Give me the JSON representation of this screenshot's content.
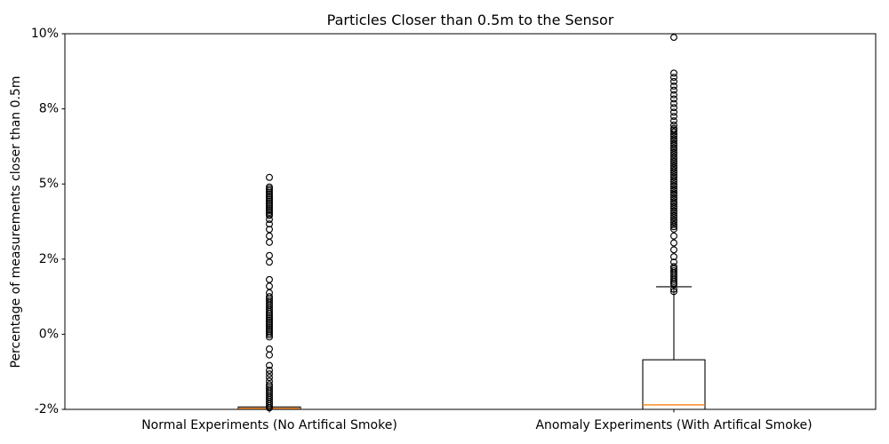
{
  "figure": {
    "background": "#ffffff"
  },
  "chart_data": {
    "type": "boxplot",
    "title": "Particles Closer than 0.5m to the Sensor",
    "xlabel": "",
    "ylabel": "Percentage of measurements closer than 0.5m",
    "ylim": [
      -2.5,
      10
    ],
    "grid": false,
    "legend": "none",
    "yticks": [
      {
        "value": 10,
        "label": "10%"
      },
      {
        "value": 7.5,
        "label": "8%"
      },
      {
        "value": 5,
        "label": "5%"
      },
      {
        "value": 2.5,
        "label": "2%"
      },
      {
        "value": 0,
        "label": "0%"
      },
      {
        "value": -2.5,
        "label": "-2%"
      }
    ],
    "categories": [
      "Normal Experiments (No Artifical Smoke)",
      "Anomaly Experiments (With Artifical Smoke)"
    ],
    "colors": {
      "box": "#000000",
      "median": "#ff7f0e",
      "whisker": "#000000",
      "outlier": "#000000",
      "axis": "#000000",
      "text": "#000000",
      "background": "#ffffff"
    },
    "series": [
      {
        "name": "Normal Experiments (No Artifical Smoke)",
        "q1": -2.9,
        "median": -2.47,
        "q3": -2.42,
        "whisker_high": null,
        "whisker_low": null,
        "outliers": [
          5.22,
          4.9,
          4.84,
          4.78,
          4.72,
          4.66,
          4.6,
          4.54,
          4.48,
          4.42,
          4.36,
          4.3,
          4.24,
          4.18,
          4.12,
          4.06,
          4.0,
          3.95,
          3.82,
          3.67,
          3.49,
          3.27,
          3.06,
          2.62,
          2.4,
          1.82,
          1.6,
          1.38,
          1.25,
          1.18,
          1.11,
          1.04,
          0.97,
          0.9,
          0.83,
          0.76,
          0.7,
          0.64,
          0.58,
          0.52,
          0.46,
          0.4,
          0.34,
          0.28,
          0.22,
          0.16,
          0.1,
          0.04,
          -0.02,
          -0.09,
          -0.49,
          -0.69,
          -1.04,
          -1.2,
          -1.32,
          -1.44,
          -1.56,
          -1.68,
          -1.75,
          -1.82,
          -1.89,
          -1.96,
          -2.03,
          -2.1,
          -2.17,
          -2.24,
          -2.31,
          -2.38,
          -2.45
        ]
      },
      {
        "name": "Anomaly Experiments (With Artifical Smoke)",
        "q1": -3.0,
        "median": -2.35,
        "q3": -0.85,
        "whisker_high": 1.58,
        "whisker_low": null,
        "outliers": [
          9.88,
          8.69,
          8.55,
          8.41,
          8.26,
          8.12,
          7.97,
          7.83,
          7.68,
          7.54,
          7.39,
          7.25,
          7.1,
          6.96,
          6.85,
          6.8,
          6.73,
          6.65,
          6.58,
          6.5,
          6.43,
          6.35,
          6.28,
          6.2,
          6.13,
          6.05,
          5.98,
          5.9,
          5.83,
          5.75,
          5.68,
          5.6,
          5.53,
          5.45,
          5.38,
          5.3,
          5.23,
          5.15,
          5.08,
          5.0,
          4.93,
          4.85,
          4.78,
          4.7,
          4.63,
          4.55,
          4.48,
          4.4,
          4.33,
          4.25,
          4.18,
          4.1,
          4.03,
          3.95,
          3.88,
          3.8,
          3.73,
          3.65,
          3.58,
          3.5,
          3.27,
          3.04,
          2.81,
          2.58,
          2.4,
          2.25,
          2.18,
          2.11,
          2.04,
          1.97,
          1.9,
          1.83,
          1.76,
          1.7,
          1.65,
          1.5,
          1.42
        ]
      }
    ]
  }
}
